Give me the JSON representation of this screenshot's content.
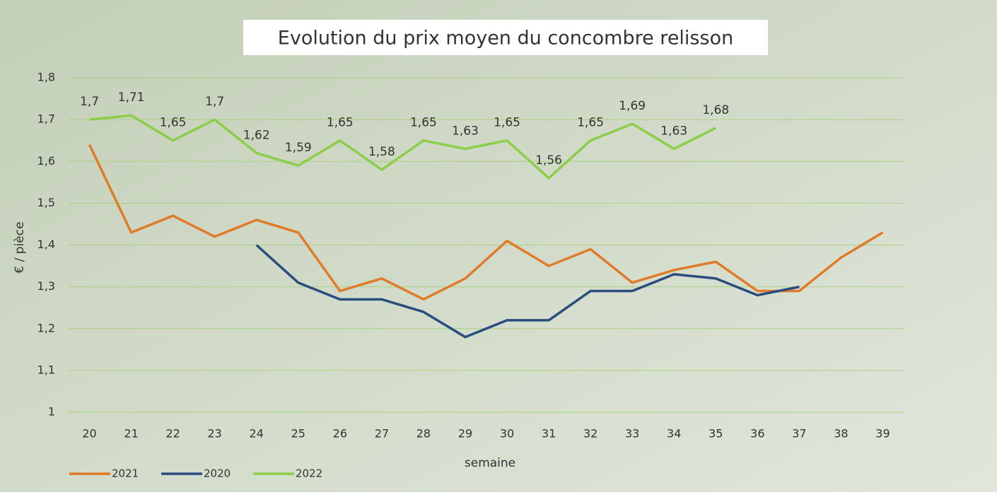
{
  "chart_data": {
    "type": "line",
    "title": "Evolution du prix moyen du concombre relisson",
    "x_label": "semaine",
    "y_label": "€ / pièce",
    "categories": [
      "20",
      "21",
      "22",
      "23",
      "24",
      "25",
      "26",
      "27",
      "28",
      "29",
      "30",
      "31",
      "32",
      "33",
      "34",
      "35",
      "36",
      "37",
      "38",
      "39"
    ],
    "ylim": [
      1,
      1.8
    ],
    "yticks": [
      1,
      {
        "value": 1.1,
        "label": "1,1"
      },
      {
        "value": 1.2,
        "label": "1,2"
      },
      {
        "value": 1.3,
        "label": "1,3"
      },
      {
        "value": 1.4,
        "label": "1,4"
      },
      {
        "value": 1.5,
        "label": "1,5"
      },
      {
        "value": 1.6,
        "label": "1,6"
      },
      {
        "value": 1.7,
        "label": "1,7"
      },
      {
        "value": 1.8,
        "label": "1,8"
      }
    ],
    "grid": true,
    "legend": "bottom-left",
    "series": [
      {
        "name": "2021",
        "color": "#e07b2a",
        "values": [
          1.64,
          1.43,
          1.47,
          1.42,
          1.46,
          1.43,
          1.29,
          1.32,
          1.27,
          1.32,
          1.41,
          1.35,
          1.39,
          1.31,
          1.34,
          1.36,
          1.29,
          1.29,
          1.37,
          1.43
        ]
      },
      {
        "name": "2020",
        "color": "#2b4c7e",
        "values": [
          null,
          null,
          null,
          null,
          1.4,
          1.31,
          1.27,
          1.27,
          1.24,
          1.18,
          1.22,
          1.22,
          1.29,
          1.29,
          1.33,
          1.32,
          1.28,
          1.3,
          null,
          null
        ]
      },
      {
        "name": "2022",
        "color": "#8cce4a",
        "values": [
          1.7,
          1.71,
          1.65,
          1.7,
          1.62,
          1.59,
          1.65,
          1.58,
          1.65,
          1.63,
          1.65,
          1.56,
          1.65,
          1.69,
          1.63,
          1.68,
          null,
          null,
          null,
          null
        ],
        "value_labels": [
          "1,7",
          "1,71",
          "1,65",
          "1,7",
          "1,62",
          "1,59",
          "1,65",
          "1,58",
          "1,65",
          "1,63",
          "1,65",
          "1,56",
          "1,65",
          "1,69",
          "1,63",
          "1,68",
          null,
          null,
          null,
          null
        ]
      }
    ]
  }
}
